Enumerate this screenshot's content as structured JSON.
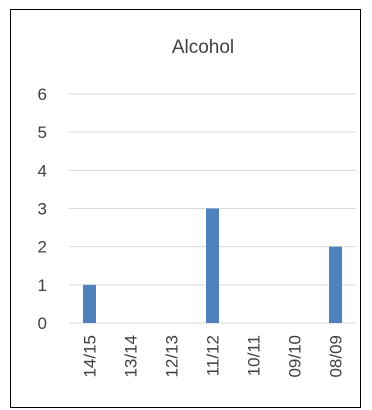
{
  "chart_data": {
    "type": "bar",
    "title": "Alcohol",
    "xlabel": "",
    "ylabel": "",
    "categories": [
      "14/15",
      "13/14",
      "12/13",
      "11/12",
      "10/11",
      "09/10",
      "08/09"
    ],
    "values": [
      1,
      0,
      0,
      3,
      0,
      0,
      2
    ],
    "ylim": [
      0,
      6
    ],
    "yticks": [
      0,
      1,
      2,
      3,
      4,
      5,
      6
    ],
    "grid": true,
    "legend": "none",
    "colors": {
      "bar": "#4F81BD",
      "grid": "#D9D9D9",
      "text": "#404040",
      "border": "#000000"
    }
  }
}
